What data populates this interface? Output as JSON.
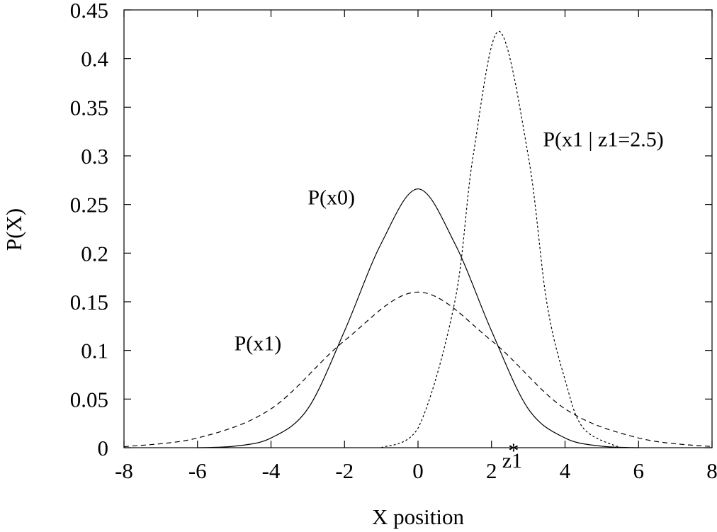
{
  "chart_data": {
    "type": "line",
    "title": "",
    "xlabel": "X position",
    "ylabel": "P(X)",
    "xlim": [
      -8,
      8
    ],
    "ylim": [
      0,
      0.45
    ],
    "x_ticks": [
      -8,
      -6,
      -4,
      -2,
      0,
      2,
      4,
      6,
      8
    ],
    "y_ticks": [
      0,
      0.05,
      0.1,
      0.15,
      0.2,
      0.25,
      0.3,
      0.35,
      0.4,
      0.45
    ],
    "y_tick_labels": [
      "0",
      "0.05",
      "0.1",
      "0.15",
      "0.2",
      "0.25",
      "0.3",
      "0.35",
      "0.4",
      "0.45"
    ],
    "grid": false,
    "series": [
      {
        "name": "P(x0)",
        "dash": "solid",
        "points": [
          [
            -6,
            0.0
          ],
          [
            -5,
            0.0015
          ],
          [
            -4,
            0.01
          ],
          [
            -3,
            0.04
          ],
          [
            -2,
            0.12
          ],
          [
            -1,
            0.21
          ],
          [
            0,
            0.266
          ],
          [
            1,
            0.21
          ],
          [
            2,
            0.12
          ],
          [
            3,
            0.04
          ],
          [
            4,
            0.01
          ],
          [
            5,
            0.0015
          ],
          [
            6,
            0.0
          ]
        ]
      },
      {
        "name": "P(x1)",
        "dash": "dashed",
        "points": [
          [
            -8,
            0.001
          ],
          [
            -6,
            0.01
          ],
          [
            -4,
            0.04
          ],
          [
            -2,
            0.11
          ],
          [
            0,
            0.16
          ],
          [
            2,
            0.11
          ],
          [
            4,
            0.04
          ],
          [
            6,
            0.01
          ],
          [
            8,
            0.001
          ]
        ]
      },
      {
        "name": "P(x1 | z1=2.5)",
        "dash": "dotted",
        "points": [
          [
            -1,
            0.0
          ],
          [
            0,
            0.02
          ],
          [
            1,
            0.15
          ],
          [
            1.5,
            0.3
          ],
          [
            2.2,
            0.428
          ],
          [
            3,
            0.3
          ],
          [
            3.5,
            0.15
          ],
          [
            4,
            0.07
          ],
          [
            4.5,
            0.02
          ],
          [
            5.5,
            0.0
          ]
        ]
      }
    ],
    "annotations": [
      {
        "text": "P(x0)",
        "x": -3.0,
        "y": 0.25
      },
      {
        "text": "P(x1)",
        "x": -5.0,
        "y": 0.1
      },
      {
        "text": "P(x1 | z1=2.5)",
        "x": 3.4,
        "y": 0.31
      }
    ],
    "marker": {
      "symbol": "*",
      "label": "z1",
      "x": 2.6,
      "y": 0.0
    }
  }
}
